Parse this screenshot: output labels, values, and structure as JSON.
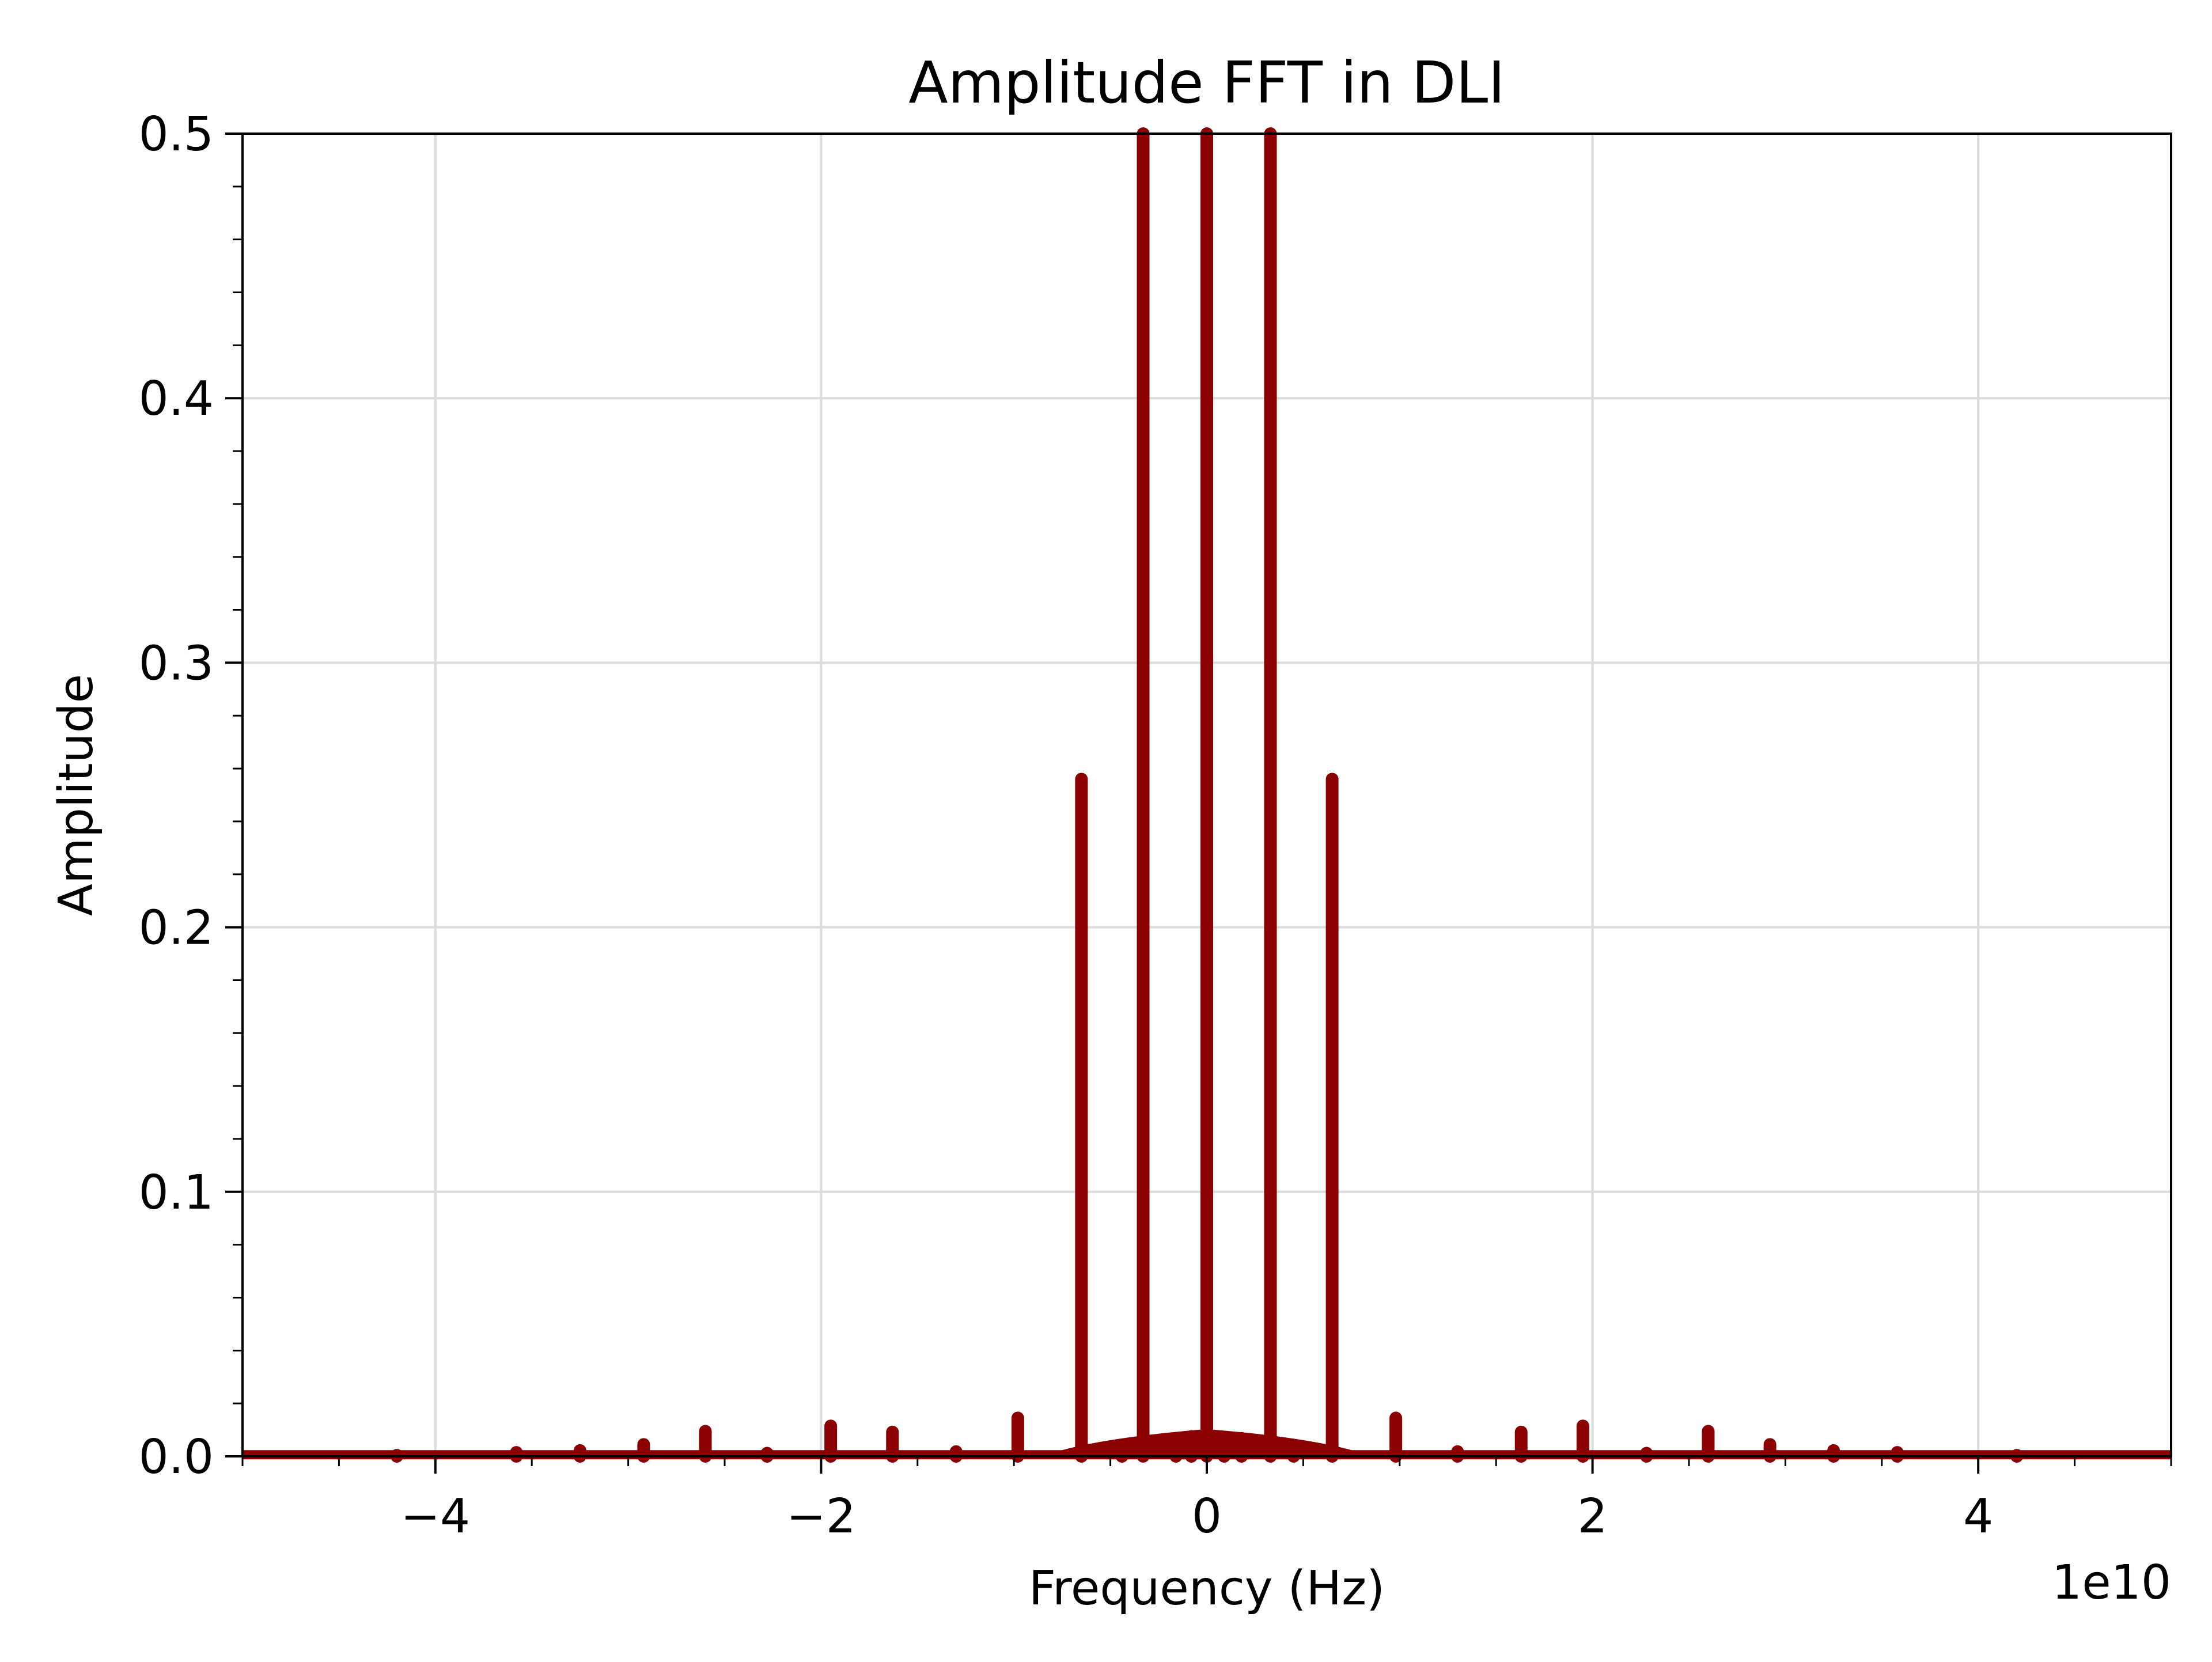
{
  "chart_data": {
    "type": "line",
    "title": "Amplitude FFT in DLI",
    "xlabel": "Frequency (Hz)",
    "ylabel": "Amplitude",
    "x_offset_label": "1e10",
    "xlim": [
      -5,
      5
    ],
    "ylim": [
      0,
      0.5
    ],
    "x_ticks": [
      -4,
      -2,
      0,
      2,
      4
    ],
    "x_tick_labels": [
      "−4",
      "−2",
      "0",
      "2",
      "4"
    ],
    "y_ticks": [
      0.0,
      0.1,
      0.2,
      0.3,
      0.4,
      0.5
    ],
    "y_tick_labels": [
      "0.0",
      "0.1",
      "0.2",
      "0.3",
      "0.4",
      "0.5"
    ],
    "grid": true,
    "legend": "none",
    "line_color": "#8b0000",
    "series": [
      {
        "peaks": [
          {
            "x": -4.2,
            "y": 0.0004
          },
          {
            "x": -3.58,
            "y": 0.0015
          },
          {
            "x": -3.25,
            "y": 0.0022
          },
          {
            "x": -2.92,
            "y": 0.0045
          },
          {
            "x": -2.6,
            "y": 0.0095
          },
          {
            "x": -2.28,
            "y": 0.0012
          },
          {
            "x": -1.95,
            "y": 0.0115
          },
          {
            "x": -1.63,
            "y": 0.0092
          },
          {
            "x": -1.3,
            "y": 0.0018
          },
          {
            "x": -0.98,
            "y": 0.0145
          },
          {
            "x": -0.65,
            "y": 0.256
          },
          {
            "x": -0.44,
            "y": 0.0035
          },
          {
            "x": -0.33,
            "y": 0.5
          },
          {
            "x": -0.16,
            "y": 0.006
          },
          {
            "x": -0.08,
            "y": 0.0075
          },
          {
            "x": 0.0,
            "y": 0.5
          },
          {
            "x": 0.09,
            "y": 0.0072
          },
          {
            "x": 0.18,
            "y": 0.0068
          },
          {
            "x": 0.33,
            "y": 0.5
          },
          {
            "x": 0.45,
            "y": 0.0038
          },
          {
            "x": 0.65,
            "y": 0.256
          },
          {
            "x": 0.98,
            "y": 0.0145
          },
          {
            "x": 1.3,
            "y": 0.0018
          },
          {
            "x": 1.63,
            "y": 0.0092
          },
          {
            "x": 1.95,
            "y": 0.0115
          },
          {
            "x": 2.28,
            "y": 0.0012
          },
          {
            "x": 2.6,
            "y": 0.0095
          },
          {
            "x": 2.92,
            "y": 0.0045
          },
          {
            "x": 3.25,
            "y": 0.0022
          },
          {
            "x": 3.58,
            "y": 0.0015
          },
          {
            "x": 4.2,
            "y": 0.0004
          }
        ]
      }
    ]
  }
}
